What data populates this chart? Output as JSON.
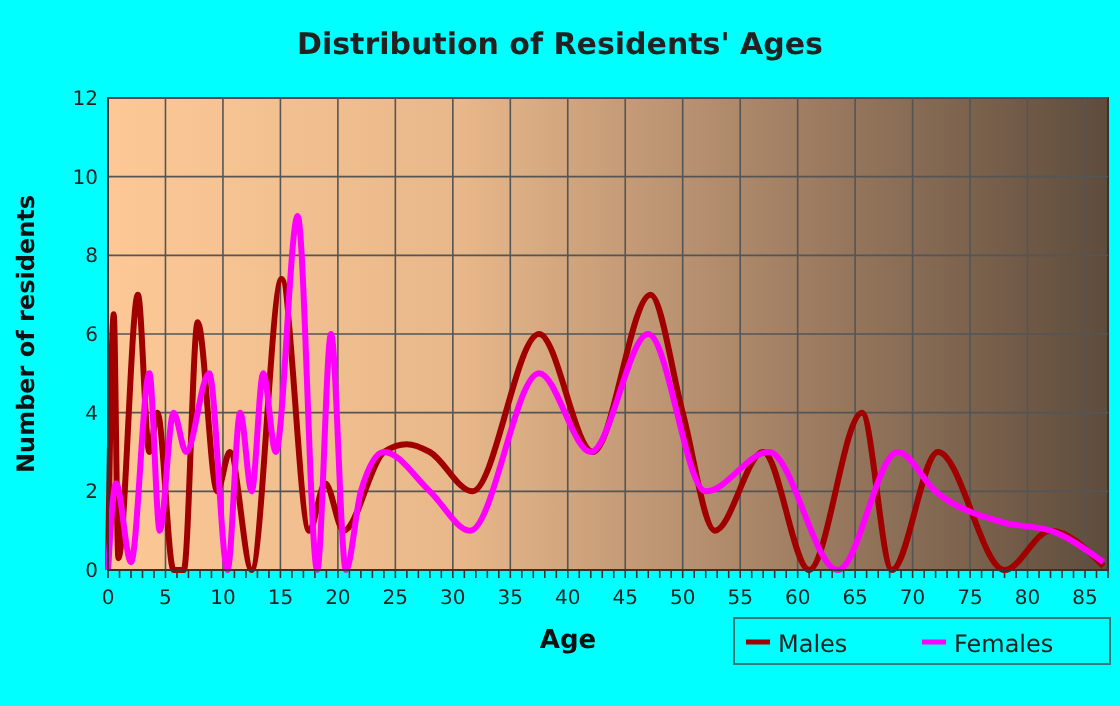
{
  "chart_data": {
    "type": "line",
    "title": "Distribution of Residents' Ages",
    "xlabel": "Age",
    "ylabel": "Number of residents",
    "xlim": [
      0,
      87
    ],
    "xticks": [
      0,
      5,
      10,
      15,
      20,
      25,
      30,
      35,
      40,
      45,
      50,
      55,
      60,
      65,
      70,
      75,
      80,
      85
    ],
    "ylim": [
      0,
      12
    ],
    "yticks": [
      0,
      2,
      4,
      6,
      8,
      10,
      12
    ],
    "grid": true,
    "legend": "bottom",
    "marker": "none",
    "line_style": "solid",
    "series": [
      {
        "name": "Males",
        "color": "#a00000",
        "x": [
          0,
          0.5,
          0.9,
          2.6,
          3.6,
          4.3,
          5.7,
          6.6,
          7.8,
          9.5,
          10.6,
          12.5,
          15.1,
          17.5,
          18.9,
          20.5,
          24,
          26,
          28,
          31.7,
          37.5,
          42.2,
          47.2,
          50,
          52.8,
          57,
          61,
          65.6,
          68.2,
          72.2,
          78,
          82,
          86.6
        ],
        "values": [
          0,
          6.5,
          0.3,
          7,
          3,
          4,
          0,
          0,
          6.3,
          2,
          3,
          0,
          7.4,
          1,
          2.2,
          1,
          3,
          3.2,
          3,
          2,
          6,
          3,
          7,
          4,
          1,
          3,
          0,
          4,
          0,
          3,
          0,
          1,
          0.1
        ]
      },
      {
        "name": "Females",
        "color": "#ff00ff",
        "x": [
          0,
          0.7,
          2,
          3.6,
          4.5,
          5.7,
          6.8,
          8.8,
          10.4,
          11.5,
          12.5,
          13.5,
          14.6,
          16.5,
          18.2,
          19.4,
          20.7,
          22,
          24,
          28,
          31.5,
          37.5,
          42,
          47,
          52,
          57.5,
          63.5,
          68.7,
          72,
          78,
          82,
          86.6
        ],
        "values": [
          0,
          2.2,
          0.2,
          5,
          1,
          4,
          3,
          5,
          0,
          4,
          2,
          5,
          3,
          9,
          0,
          6,
          0,
          2,
          3,
          2,
          1,
          5,
          3,
          6,
          2,
          3,
          0,
          3,
          2,
          1.2,
          1,
          0.2
        ]
      }
    ]
  }
}
